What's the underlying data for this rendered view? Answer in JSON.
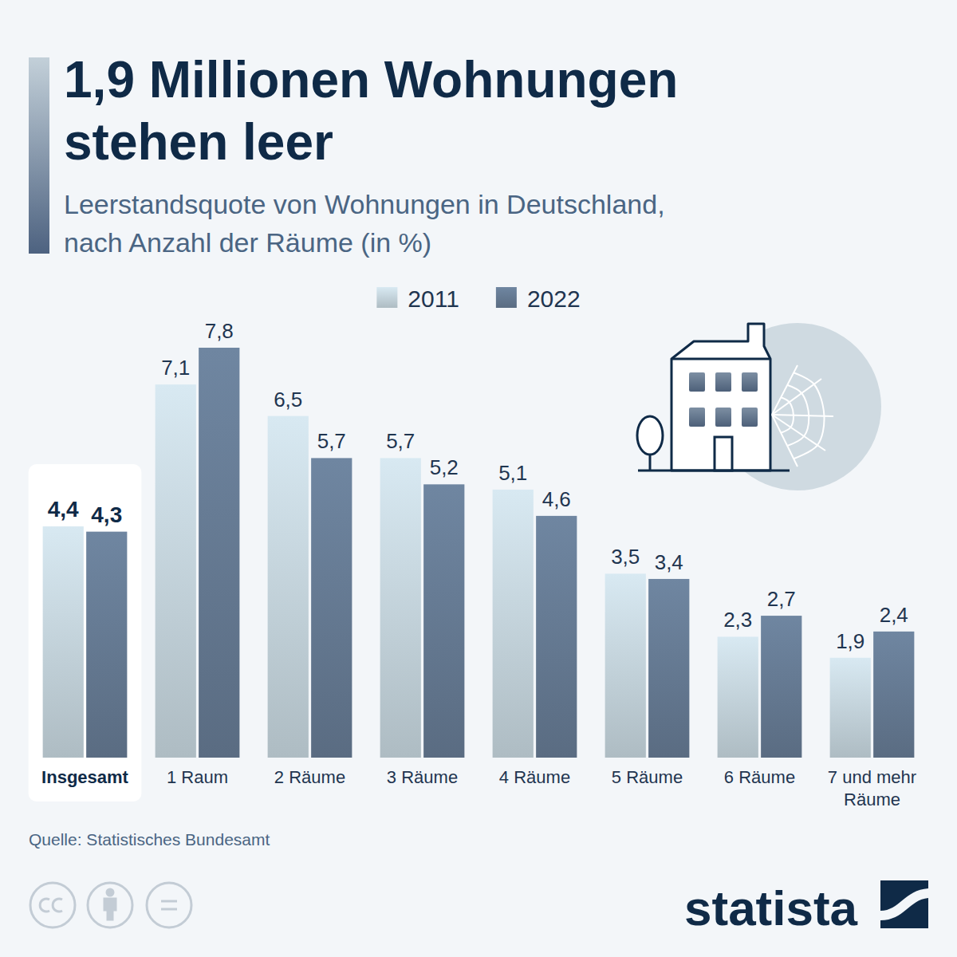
{
  "chart_data": {
    "type": "bar",
    "title": "1,9 Millionen Wohnungen stehen leer",
    "subtitle": "Leerstandsquote von Wohnungen in Deutschland, nach Anzahl der Räume (in %)",
    "categories": [
      "Insgesamt",
      "1 Raum",
      "2 Räume",
      "3 Räume",
      "4 Räume",
      "5 Räume",
      "6 Räume",
      "7 und mehr Räume"
    ],
    "series": [
      {
        "name": "2011",
        "color": "#c2d1d9",
        "values": [
          4.4,
          7.1,
          6.5,
          5.7,
          5.1,
          3.5,
          2.3,
          1.9
        ],
        "value_labels": [
          "4,4",
          "7,1",
          "6,5",
          "5,7",
          "5,1",
          "3,5",
          "2,3",
          "1,9"
        ]
      },
      {
        "name": "2022",
        "color": "#647891",
        "values": [
          4.3,
          7.8,
          5.7,
          5.2,
          4.6,
          3.4,
          2.7,
          2.4
        ],
        "value_labels": [
          "4,3",
          "7,8",
          "5,7",
          "5,2",
          "4,6",
          "3,4",
          "2,7",
          "2,4"
        ]
      }
    ],
    "ylim": [
      0,
      7.8
    ],
    "tick_labels": "x",
    "grid": false,
    "data_labels": true,
    "legend": "top",
    "source": "Quelle: Statistisches Bundesamt",
    "logo_text": "statista"
  }
}
